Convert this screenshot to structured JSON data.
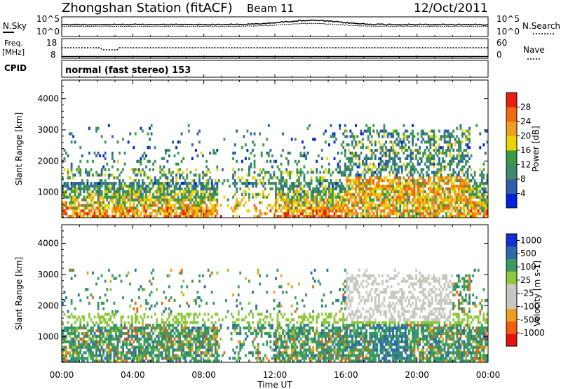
{
  "header": {
    "station": "Zhongshan Station (fitACF)",
    "beam": "Beam 11",
    "date": "12/Oct/2011"
  },
  "noise_panel": {
    "left_label": "N.Sky",
    "left_ticks": [
      "10^5",
      "10^0"
    ],
    "right_label": "N.Search",
    "right_ticks": [
      "10^5",
      "10^0"
    ]
  },
  "freq_panel": {
    "left_label_1": "Freq.",
    "left_label_2": "[MHz]",
    "left_ticks": [
      "18",
      "8"
    ],
    "right_label": "Nave",
    "right_ticks": [
      "60",
      "0"
    ]
  },
  "cpid": {
    "label": "CPID",
    "mode": "normal (fast stereo) 153"
  },
  "colors": {
    "power": [
      "#0022dd",
      "#2e5fa8",
      "#3f8a6a",
      "#3a9a48",
      "#e8d400",
      "#f0a020",
      "#f06a10",
      "#e82010"
    ],
    "velocity": [
      "#e81010",
      "#f06010",
      "#f0a020",
      "#c8c8c0",
      "#c8c8c0",
      "#8ec83c",
      "#3a9a60",
      "#2f6aa8",
      "#1030d0"
    ]
  },
  "chart_data": [
    {
      "type": "heatmap",
      "title": "",
      "ylabel": "Slant Range [km]",
      "xlabel": "",
      "ylim": [
        180,
        4600
      ],
      "xlim": [
        0,
        24
      ],
      "y_ticks": [
        "1000",
        "2000",
        "3000",
        "4000"
      ],
      "colorbar": {
        "label": "Power [dB]",
        "ticks": [
          "4",
          "8",
          "12",
          "16",
          "20",
          "24",
          "28"
        ],
        "range": [
          0,
          32
        ]
      }
    },
    {
      "type": "heatmap",
      "title": "",
      "ylabel": "Slant Range [km]",
      "xlabel": "Time UT",
      "ylim": [
        180,
        4600
      ],
      "xlim": [
        0,
        24
      ],
      "y_ticks": [
        "1000",
        "2000",
        "3000",
        "4000"
      ],
      "x_ticks": [
        "00:00",
        "04:00",
        "08:00",
        "12:00",
        "16:00",
        "20:00",
        "00:00"
      ],
      "colorbar": {
        "label": "Velocity [m s-1]",
        "ticks": [
          "1000",
          "500",
          "100",
          "25",
          "-25",
          "-100",
          "-500",
          "-1000"
        ]
      }
    }
  ]
}
